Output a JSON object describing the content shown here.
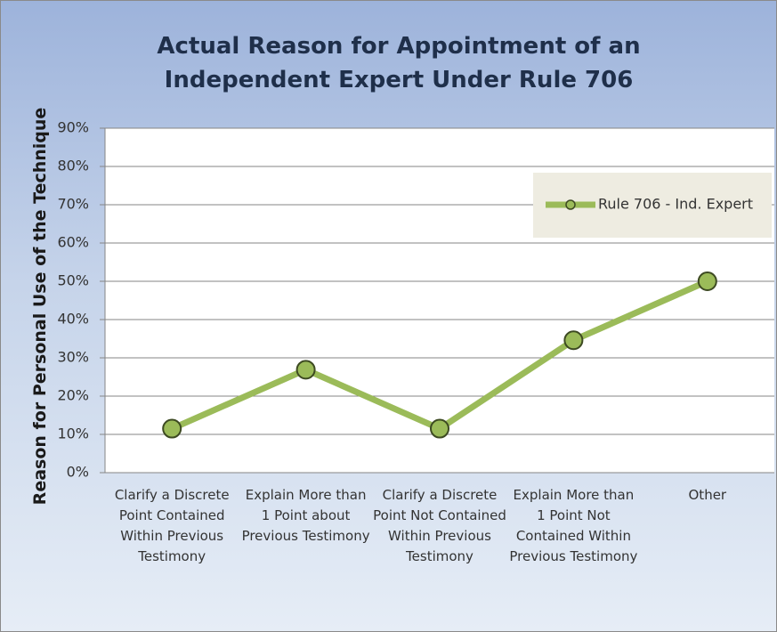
{
  "chart_data": {
    "type": "line",
    "title": "Actual Reason for Appointment of an Independent Expert Under Rule 706",
    "y_label": "Reason for Personal Use of the Technique",
    "categories": [
      "Clarify a Discrete Point Contained Within Previous Testimony",
      "Explain More than 1 Point about Previous Testimony",
      "Clarify a Discrete Point Not Contained Within Previous Testimony",
      "Explain More than 1 Point Not Contained Within Previous Testimony",
      "Other"
    ],
    "series": [
      {
        "name": "Rule 706 - Ind. Expert",
        "color": "#9bbb59",
        "values": [
          11.5,
          26.9,
          11.5,
          34.6,
          50
        ]
      }
    ],
    "ylim": [
      0,
      90
    ],
    "yticks": [
      {
        "value": 0,
        "label": "0%"
      },
      {
        "value": 10,
        "label": "10%"
      },
      {
        "value": 20,
        "label": "20%"
      },
      {
        "value": 30,
        "label": "30%"
      },
      {
        "value": 40,
        "label": "40%"
      },
      {
        "value": 50,
        "label": "50%"
      },
      {
        "value": 60,
        "label": "60%"
      },
      {
        "value": 70,
        "label": "70%"
      },
      {
        "value": 80,
        "label": "80%"
      },
      {
        "value": 90,
        "label": "90%"
      }
    ],
    "grid": true,
    "legend": "upper right"
  }
}
